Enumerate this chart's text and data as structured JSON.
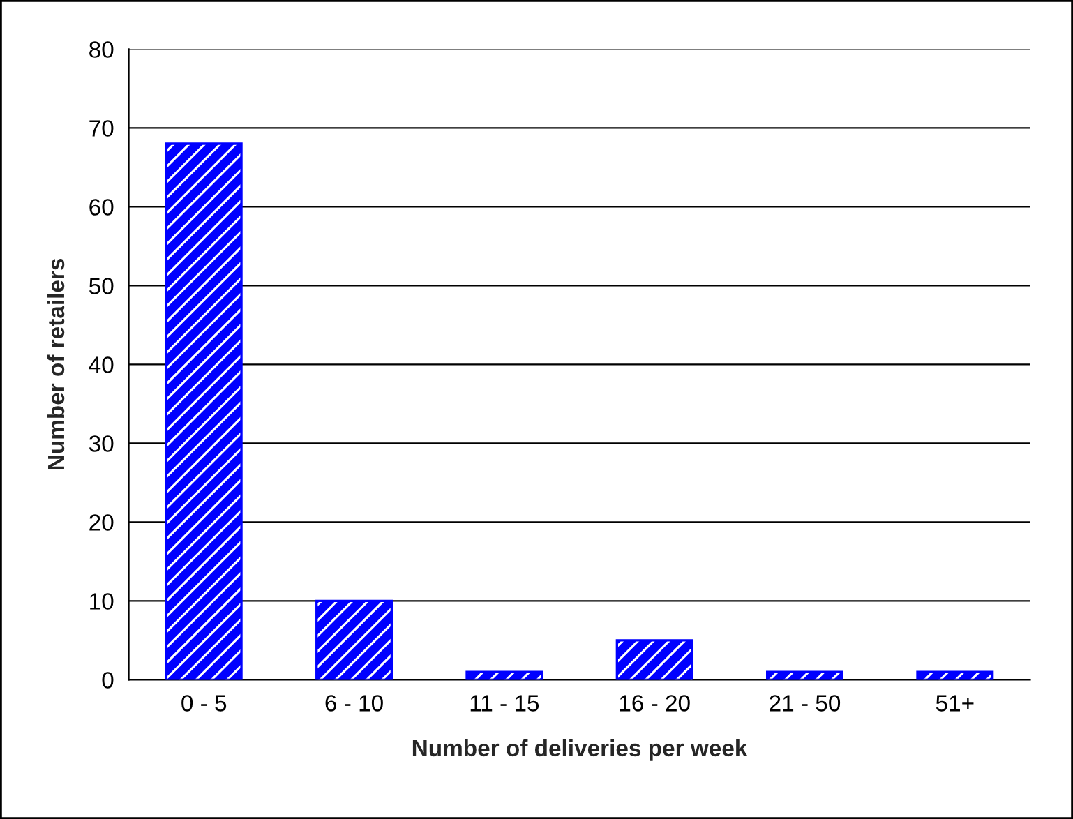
{
  "chart_data": {
    "type": "bar",
    "xlabel": "Number of deliveries per week",
    "ylabel": "Number of retailers",
    "categories": [
      "0 - 5",
      "6 - 10",
      "11 - 15",
      "16 - 20",
      "21 - 50",
      "51+"
    ],
    "values": [
      68,
      10,
      1,
      5,
      1,
      1
    ],
    "color": "#0000ff",
    "ylim": [
      0,
      80
    ],
    "yticks": [
      0,
      10,
      20,
      30,
      40,
      50,
      60,
      70,
      80
    ],
    "grid": "y",
    "legend": false
  }
}
